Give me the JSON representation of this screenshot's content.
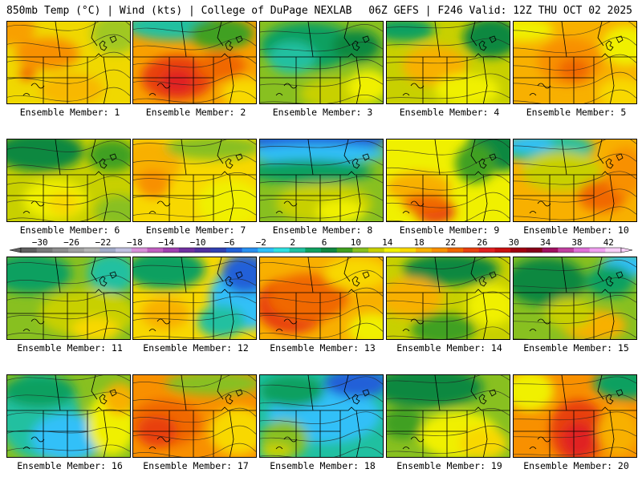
{
  "header": {
    "left_title": "850mb Temp (°C) | Wind (kts) | College of DuPage NEXLAB",
    "right_title": "06Z GEFS | F246 Valid: 12Z THU OCT 02 2025"
  },
  "colorbar": {
    "tick_labels": [
      "−30",
      "−26",
      "−22",
      "−18",
      "−14",
      "−10",
      "−6",
      "−2",
      "2",
      "6",
      "10",
      "14",
      "18",
      "22",
      "26",
      "30",
      "34",
      "38",
      "42"
    ],
    "colors": [
      "#606060",
      "#7a7a7a",
      "#8e8e8e",
      "#a2a2a2",
      "#b4b4b4",
      "#a2aac8",
      "#c0c0e0",
      "#d890d8",
      "#c060c0",
      "#a040b0",
      "#7030a0",
      "#5030a0",
      "#3040b0",
      "#2060d8",
      "#2890f0",
      "#30c0f8",
      "#30e0e0",
      "#20c0a0",
      "#10a060",
      "#108840",
      "#40a020",
      "#88c020",
      "#c8d000",
      "#f0f000",
      "#f8d800",
      "#f8b000",
      "#f89000",
      "#f06800",
      "#e84010",
      "#e02020",
      "#c81010",
      "#a00010",
      "#880018",
      "#a01060",
      "#c040a0",
      "#e070d8",
      "#f0a0f0",
      "#f8d0f8"
    ]
  },
  "members": [
    {
      "label": "Ensemble Member: 1",
      "base": "#f0d800",
      "blobs": [
        {
          "c": "#f8a000",
          "x": 5,
          "y": 8,
          "rx": 30,
          "ry": 22
        },
        {
          "c": "#f89000",
          "x": 50,
          "y": 40,
          "rx": 40,
          "ry": 20
        },
        {
          "c": "#a0c820",
          "x": 135,
          "y": 15,
          "rx": 30,
          "ry": 25
        },
        {
          "c": "#f8b800",
          "x": 80,
          "y": 85,
          "rx": 40,
          "ry": 20
        },
        {
          "c": "#f06000",
          "x": 25,
          "y": 65,
          "rx": 10,
          "ry": 8
        }
      ]
    },
    {
      "label": "Ensemble Member: 2",
      "base": "#f8a000",
      "blobs": [
        {
          "c": "#20c0a0",
          "x": 50,
          "y": 5,
          "rx": 60,
          "ry": 18
        },
        {
          "c": "#40a020",
          "x": 110,
          "y": 15,
          "rx": 40,
          "ry": 20
        },
        {
          "c": "#e84010",
          "x": 55,
          "y": 70,
          "rx": 45,
          "ry": 28
        },
        {
          "c": "#e02020",
          "x": 55,
          "y": 75,
          "rx": 20,
          "ry": 15
        },
        {
          "c": "#f06800",
          "x": 110,
          "y": 55,
          "rx": 30,
          "ry": 18
        },
        {
          "c": "#f8d800",
          "x": 140,
          "y": 90,
          "rx": 30,
          "ry": 20
        }
      ]
    },
    {
      "label": "Ensemble Member: 3",
      "base": "#88c020",
      "blobs": [
        {
          "c": "#10a060",
          "x": 60,
          "y": 30,
          "rx": 60,
          "ry": 30
        },
        {
          "c": "#20c0a0",
          "x": 40,
          "y": 45,
          "rx": 30,
          "ry": 20
        },
        {
          "c": "#108840",
          "x": 120,
          "y": 30,
          "rx": 30,
          "ry": 20
        },
        {
          "c": "#c8d000",
          "x": 100,
          "y": 90,
          "rx": 50,
          "ry": 20
        },
        {
          "c": "#f0f000",
          "x": 135,
          "y": 80,
          "rx": 25,
          "ry": 20
        }
      ]
    },
    {
      "label": "Ensemble Member: 4",
      "base": "#c8d000",
      "blobs": [
        {
          "c": "#10a060",
          "x": 20,
          "y": 10,
          "rx": 40,
          "ry": 15
        },
        {
          "c": "#108840",
          "x": 130,
          "y": 20,
          "rx": 35,
          "ry": 25
        },
        {
          "c": "#f8b000",
          "x": 60,
          "y": 55,
          "rx": 40,
          "ry": 25
        },
        {
          "c": "#f0f000",
          "x": 100,
          "y": 85,
          "rx": 40,
          "ry": 20
        }
      ]
    },
    {
      "label": "Ensemble Member: 5",
      "base": "#f8b000",
      "blobs": [
        {
          "c": "#f0f000",
          "x": 10,
          "y": 10,
          "rx": 40,
          "ry": 15
        },
        {
          "c": "#f89000",
          "x": 70,
          "y": 50,
          "rx": 40,
          "ry": 30
        },
        {
          "c": "#f06800",
          "x": 75,
          "y": 60,
          "rx": 20,
          "ry": 15
        },
        {
          "c": "#f0f000",
          "x": 140,
          "y": 30,
          "rx": 30,
          "ry": 25
        },
        {
          "c": "#f8d800",
          "x": 135,
          "y": 90,
          "rx": 30,
          "ry": 20
        }
      ]
    },
    {
      "label": "Ensemble Member: 6",
      "base": "#c8d000",
      "blobs": [
        {
          "c": "#108840",
          "x": 40,
          "y": 15,
          "rx": 55,
          "ry": 25
        },
        {
          "c": "#40a020",
          "x": 130,
          "y": 20,
          "rx": 30,
          "ry": 20
        },
        {
          "c": "#f0f000",
          "x": 60,
          "y": 75,
          "rx": 40,
          "ry": 25
        },
        {
          "c": "#f8d800",
          "x": 70,
          "y": 80,
          "rx": 20,
          "ry": 15
        },
        {
          "c": "#88c020",
          "x": 140,
          "y": 90,
          "rx": 30,
          "ry": 20
        }
      ]
    },
    {
      "label": "Ensemble Member: 7",
      "base": "#f8d800",
      "blobs": [
        {
          "c": "#f8b000",
          "x": 20,
          "y": 30,
          "rx": 40,
          "ry": 30
        },
        {
          "c": "#f89000",
          "x": 25,
          "y": 55,
          "rx": 20,
          "ry": 18
        },
        {
          "c": "#88c020",
          "x": 100,
          "y": 10,
          "rx": 60,
          "ry": 15
        },
        {
          "c": "#f0f000",
          "x": 120,
          "y": 80,
          "rx": 40,
          "ry": 30
        }
      ]
    },
    {
      "label": "Ensemble Member: 8",
      "base": "#88c020",
      "blobs": [
        {
          "c": "#2060d8",
          "x": 70,
          "y": 0,
          "rx": 90,
          "ry": 15
        },
        {
          "c": "#30c0f8",
          "x": 70,
          "y": 18,
          "rx": 90,
          "ry": 12
        },
        {
          "c": "#10a060",
          "x": 60,
          "y": 40,
          "rx": 80,
          "ry": 15
        },
        {
          "c": "#c8d000",
          "x": 80,
          "y": 80,
          "rx": 60,
          "ry": 25
        },
        {
          "c": "#f0f000",
          "x": 100,
          "y": 90,
          "rx": 30,
          "ry": 15
        }
      ]
    },
    {
      "label": "Ensemble Member: 9",
      "base": "#f0f000",
      "blobs": [
        {
          "c": "#108840",
          "x": 140,
          "y": 10,
          "rx": 40,
          "ry": 30
        },
        {
          "c": "#40a020",
          "x": 110,
          "y": 30,
          "rx": 25,
          "ry": 25
        },
        {
          "c": "#f8b000",
          "x": 40,
          "y": 60,
          "rx": 40,
          "ry": 20
        },
        {
          "c": "#e84010",
          "x": 60,
          "y": 90,
          "rx": 25,
          "ry": 15
        },
        {
          "c": "#f06800",
          "x": 50,
          "y": 80,
          "rx": 30,
          "ry": 12
        }
      ]
    },
    {
      "label": "Ensemble Member: 10",
      "base": "#f8b000",
      "blobs": [
        {
          "c": "#20c0a0",
          "x": 40,
          "y": 10,
          "rx": 60,
          "ry": 18
        },
        {
          "c": "#30c0f8",
          "x": 20,
          "y": 5,
          "rx": 30,
          "ry": 10
        },
        {
          "c": "#c8d000",
          "x": 60,
          "y": 40,
          "rx": 50,
          "ry": 25
        },
        {
          "c": "#f06800",
          "x": 110,
          "y": 70,
          "rx": 30,
          "ry": 20
        },
        {
          "c": "#f89000",
          "x": 140,
          "y": 40,
          "rx": 25,
          "ry": 30
        }
      ]
    },
    {
      "label": "Ensemble Member: 11",
      "base": "#88c020",
      "blobs": [
        {
          "c": "#10a060",
          "x": 30,
          "y": 20,
          "rx": 50,
          "ry": 25
        },
        {
          "c": "#20c0a0",
          "x": 130,
          "y": 20,
          "rx": 30,
          "ry": 25
        },
        {
          "c": "#c8d000",
          "x": 100,
          "y": 70,
          "rx": 60,
          "ry": 30
        },
        {
          "c": "#f8d800",
          "x": 110,
          "y": 90,
          "rx": 30,
          "ry": 15
        }
      ]
    },
    {
      "label": "Ensemble Member: 12",
      "base": "#f8d800",
      "blobs": [
        {
          "c": "#10a060",
          "x": 40,
          "y": 15,
          "rx": 50,
          "ry": 25
        },
        {
          "c": "#30c0f8",
          "x": 140,
          "y": 50,
          "rx": 45,
          "ry": 40
        },
        {
          "c": "#2060d8",
          "x": 140,
          "y": 20,
          "rx": 30,
          "ry": 25
        },
        {
          "c": "#20c0a0",
          "x": 110,
          "y": 80,
          "rx": 30,
          "ry": 20
        },
        {
          "c": "#f8b000",
          "x": 40,
          "y": 70,
          "rx": 30,
          "ry": 20
        }
      ]
    },
    {
      "label": "Ensemble Member: 13",
      "base": "#f8b000",
      "blobs": [
        {
          "c": "#e84010",
          "x": 40,
          "y": 60,
          "rx": 45,
          "ry": 35
        },
        {
          "c": "#f06800",
          "x": 60,
          "y": 50,
          "rx": 50,
          "ry": 30
        },
        {
          "c": "#f8d800",
          "x": 120,
          "y": 20,
          "rx": 40,
          "ry": 20
        },
        {
          "c": "#f0f000",
          "x": 140,
          "y": 90,
          "rx": 30,
          "ry": 20
        }
      ]
    },
    {
      "label": "Ensemble Member: 14",
      "base": "#c8d000",
      "blobs": [
        {
          "c": "#108840",
          "x": 80,
          "y": 15,
          "rx": 60,
          "ry": 20
        },
        {
          "c": "#f8b000",
          "x": 30,
          "y": 50,
          "rx": 40,
          "ry": 25
        },
        {
          "c": "#40a020",
          "x": 70,
          "y": 90,
          "rx": 40,
          "ry": 20
        },
        {
          "c": "#f0f000",
          "x": 130,
          "y": 60,
          "rx": 30,
          "ry": 25
        }
      ]
    },
    {
      "label": "Ensemble Member: 15",
      "base": "#88c020",
      "blobs": [
        {
          "c": "#108840",
          "x": 40,
          "y": 30,
          "rx": 50,
          "ry": 30
        },
        {
          "c": "#30c0f8",
          "x": 140,
          "y": 10,
          "rx": 30,
          "ry": 15
        },
        {
          "c": "#10a060",
          "x": 120,
          "y": 30,
          "rx": 30,
          "ry": 20
        },
        {
          "c": "#f8b000",
          "x": 100,
          "y": 85,
          "rx": 40,
          "ry": 20
        },
        {
          "c": "#c8d000",
          "x": 70,
          "y": 70,
          "rx": 30,
          "ry": 20
        }
      ]
    },
    {
      "label": "Ensemble Member: 16",
      "base": "#88c020",
      "blobs": [
        {
          "c": "#20c0a0",
          "x": 40,
          "y": 50,
          "rx": 50,
          "ry": 55
        },
        {
          "c": "#30c0f8",
          "x": 75,
          "y": 78,
          "rx": 45,
          "ry": 30
        },
        {
          "c": "#10a060",
          "x": 40,
          "y": 20,
          "rx": 45,
          "ry": 20
        },
        {
          "c": "#f0f000",
          "x": 130,
          "y": 60,
          "rx": 30,
          "ry": 40
        },
        {
          "c": "#f8b000",
          "x": 140,
          "y": 30,
          "rx": 20,
          "ry": 20
        }
      ]
    },
    {
      "label": "Ensemble Member: 17",
      "base": "#f89000",
      "blobs": [
        {
          "c": "#f06800",
          "x": 40,
          "y": 60,
          "rx": 45,
          "ry": 30
        },
        {
          "c": "#e84010",
          "x": 30,
          "y": 70,
          "rx": 25,
          "ry": 20
        },
        {
          "c": "#88c020",
          "x": 100,
          "y": 10,
          "rx": 60,
          "ry": 15
        },
        {
          "c": "#f8d800",
          "x": 130,
          "y": 70,
          "rx": 35,
          "ry": 30
        }
      ]
    },
    {
      "label": "Ensemble Member: 18",
      "base": "#20c0a0",
      "blobs": [
        {
          "c": "#30c0f8",
          "x": 80,
          "y": 50,
          "rx": 70,
          "ry": 35
        },
        {
          "c": "#2060d8",
          "x": 120,
          "y": 10,
          "rx": 40,
          "ry": 18
        },
        {
          "c": "#10a060",
          "x": 40,
          "y": 20,
          "rx": 40,
          "ry": 20
        },
        {
          "c": "#88c020",
          "x": 30,
          "y": 80,
          "rx": 30,
          "ry": 25
        },
        {
          "c": "#c8d000",
          "x": 20,
          "y": 95,
          "rx": 20,
          "ry": 10
        }
      ]
    },
    {
      "label": "Ensemble Member: 19",
      "base": "#88c020",
      "blobs": [
        {
          "c": "#108840",
          "x": 50,
          "y": 15,
          "rx": 70,
          "ry": 25
        },
        {
          "c": "#f0f000",
          "x": 90,
          "y": 75,
          "rx": 50,
          "ry": 30
        },
        {
          "c": "#f8d800",
          "x": 120,
          "y": 85,
          "rx": 30,
          "ry": 20
        },
        {
          "c": "#40a020",
          "x": 20,
          "y": 60,
          "rx": 25,
          "ry": 20
        }
      ]
    },
    {
      "label": "Ensemble Member: 20",
      "base": "#f89000",
      "blobs": [
        {
          "c": "#10a060",
          "x": 140,
          "y": 10,
          "rx": 40,
          "ry": 20
        },
        {
          "c": "#f0f000",
          "x": 20,
          "y": 20,
          "rx": 30,
          "ry": 25
        },
        {
          "c": "#e84010",
          "x": 80,
          "y": 70,
          "rx": 35,
          "ry": 40
        },
        {
          "c": "#e02020",
          "x": 80,
          "y": 80,
          "rx": 20,
          "ry": 22
        },
        {
          "c": "#f8b000",
          "x": 130,
          "y": 70,
          "rx": 25,
          "ry": 30
        }
      ]
    }
  ]
}
